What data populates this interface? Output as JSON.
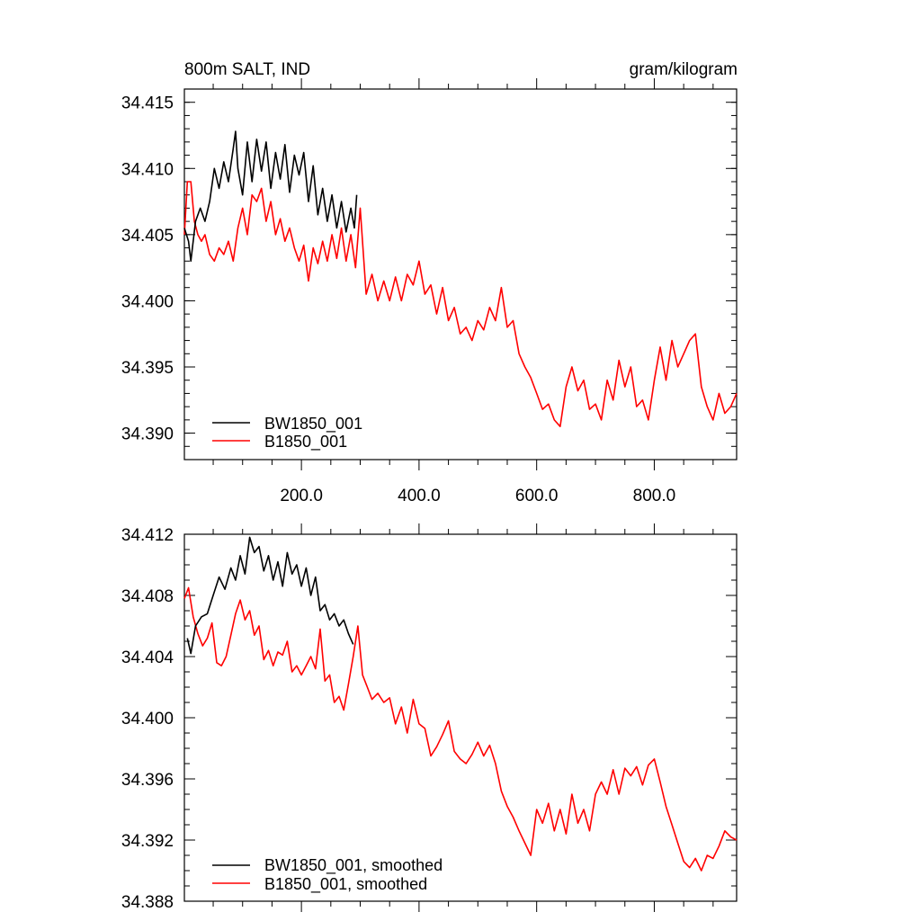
{
  "chart_data": [
    {
      "type": "line",
      "title": "800m SALT, IND",
      "units": "gram/kilogram",
      "xlabel": "",
      "ylabel": "",
      "xlim": [
        1,
        940
      ],
      "ylim": [
        34.388,
        34.416
      ],
      "x_ticks": [
        200,
        400,
        600,
        800
      ],
      "x_tick_labels": [
        "200.0",
        "400.0",
        "600.0",
        "800.0"
      ],
      "y_ticks": [
        34.39,
        34.395,
        34.4,
        34.405,
        34.41,
        34.415
      ],
      "y_tick_labels": [
        "34.390",
        "34.395",
        "34.400",
        "34.405",
        "34.410",
        "34.415"
      ],
      "grid": false,
      "legend_position": "bottom-left",
      "series": [
        {
          "name": "BW1850_001",
          "color": "#000000",
          "x": [
            1,
            8,
            12,
            20,
            28,
            36,
            44,
            52,
            60,
            68,
            76,
            84,
            88,
            92,
            100,
            108,
            116,
            124,
            132,
            140,
            148,
            156,
            164,
            172,
            180,
            188,
            196,
            204,
            212,
            220,
            228,
            236,
            244,
            252,
            260,
            268,
            276,
            284,
            290,
            294
          ],
          "values": [
            34.4055,
            34.4045,
            34.403,
            34.406,
            34.407,
            34.406,
            34.4075,
            34.41,
            34.4085,
            34.4105,
            34.409,
            34.4115,
            34.4128,
            34.41,
            34.408,
            34.412,
            34.409,
            34.4122,
            34.4098,
            34.412,
            34.4085,
            34.4112,
            34.4092,
            34.4118,
            34.4082,
            34.411,
            34.4095,
            34.4112,
            34.4075,
            34.4102,
            34.4065,
            34.4085,
            34.406,
            34.408,
            34.4055,
            34.4075,
            34.4052,
            34.407,
            34.4055,
            34.408
          ]
        },
        {
          "name": "B1850_001",
          "color": "#ff0000",
          "x": [
            1,
            6,
            12,
            18,
            24,
            30,
            36,
            44,
            52,
            60,
            68,
            76,
            84,
            92,
            100,
            108,
            116,
            124,
            132,
            140,
            148,
            156,
            164,
            172,
            180,
            188,
            196,
            204,
            212,
            220,
            228,
            236,
            244,
            252,
            260,
            268,
            276,
            284,
            292,
            300,
            310,
            320,
            330,
            340,
            350,
            360,
            370,
            380,
            390,
            400,
            410,
            420,
            430,
            440,
            450,
            460,
            470,
            480,
            490,
            500,
            510,
            520,
            530,
            540,
            550,
            560,
            570,
            580,
            590,
            600,
            610,
            620,
            630,
            640,
            650,
            660,
            670,
            680,
            690,
            700,
            710,
            720,
            730,
            740,
            750,
            760,
            770,
            780,
            790,
            800,
            810,
            820,
            830,
            840,
            850,
            860,
            870,
            880,
            890,
            900,
            910,
            920,
            930,
            940
          ],
          "values": [
            34.405,
            34.409,
            34.409,
            34.406,
            34.405,
            34.4045,
            34.405,
            34.4035,
            34.403,
            34.404,
            34.4035,
            34.4045,
            34.403,
            34.4055,
            34.407,
            34.405,
            34.408,
            34.4075,
            34.4085,
            34.406,
            34.4075,
            34.405,
            34.4062,
            34.4045,
            34.4055,
            34.404,
            34.403,
            34.4042,
            34.4015,
            34.404,
            34.4028,
            34.4045,
            34.403,
            34.405,
            34.4032,
            34.4055,
            34.403,
            34.405,
            34.4025,
            34.407,
            34.4005,
            34.402,
            34.4,
            34.4015,
            34.4,
            34.4018,
            34.4,
            34.402,
            34.4012,
            34.403,
            34.4005,
            34.4012,
            34.399,
            34.401,
            34.3985,
            34.3995,
            34.3975,
            34.398,
            34.397,
            34.3985,
            34.3978,
            34.3995,
            34.3985,
            34.401,
            34.398,
            34.3985,
            34.396,
            34.395,
            34.3942,
            34.393,
            34.3918,
            34.3922,
            34.391,
            34.3905,
            34.3935,
            34.395,
            34.3932,
            34.394,
            34.3918,
            34.3922,
            34.391,
            34.394,
            34.3925,
            34.3955,
            34.3935,
            34.395,
            34.392,
            34.3925,
            34.391,
            34.394,
            34.3965,
            34.394,
            34.397,
            34.395,
            34.396,
            34.397,
            34.3975,
            34.3935,
            34.392,
            34.391,
            34.393,
            34.3915,
            34.392,
            34.393
          ]
        }
      ]
    },
    {
      "type": "line",
      "title": "",
      "xlabel": "",
      "ylabel": "",
      "xlim": [
        1,
        940
      ],
      "ylim": [
        34.388,
        34.412
      ],
      "y_ticks": [
        34.388,
        34.392,
        34.396,
        34.4,
        34.404,
        34.408,
        34.412
      ],
      "y_tick_labels": [
        "34.388",
        "34.392",
        "34.396",
        "34.400",
        "34.404",
        "34.408",
        "34.412"
      ],
      "grid": false,
      "legend_position": "bottom-left",
      "series": [
        {
          "name": "BW1850_001, smoothed",
          "color": "#000000",
          "x": [
            6,
            12,
            20,
            30,
            40,
            50,
            60,
            70,
            80,
            88,
            96,
            104,
            112,
            120,
            128,
            136,
            144,
            152,
            160,
            168,
            176,
            184,
            192,
            200,
            208,
            216,
            224,
            232,
            240,
            248,
            256,
            264,
            272,
            280,
            288
          ],
          "values": [
            34.4052,
            34.4042,
            34.406,
            34.4066,
            34.4068,
            34.408,
            34.4092,
            34.4084,
            34.4098,
            34.409,
            34.4106,
            34.4094,
            34.4118,
            34.4108,
            34.4112,
            34.4096,
            34.4106,
            34.409,
            34.4102,
            34.4086,
            34.4108,
            34.4094,
            34.41,
            34.4086,
            34.4098,
            34.408,
            34.4092,
            34.407,
            34.4074,
            34.4064,
            34.4068,
            34.406,
            34.4064,
            34.4055,
            34.4048
          ]
        },
        {
          "name": "B1850_001, smoothed",
          "color": "#ff0000",
          "x": [
            1,
            8,
            16,
            24,
            32,
            40,
            48,
            56,
            64,
            72,
            80,
            88,
            96,
            104,
            112,
            120,
            128,
            136,
            144,
            152,
            160,
            168,
            176,
            184,
            192,
            200,
            208,
            216,
            224,
            232,
            240,
            248,
            256,
            264,
            272,
            280,
            288,
            296,
            304,
            312,
            320,
            330,
            340,
            350,
            360,
            370,
            380,
            390,
            400,
            410,
            420,
            430,
            440,
            450,
            460,
            470,
            480,
            490,
            500,
            510,
            520,
            530,
            540,
            550,
            560,
            570,
            580,
            590,
            600,
            610,
            620,
            630,
            640,
            650,
            660,
            670,
            680,
            690,
            700,
            710,
            720,
            730,
            740,
            750,
            760,
            770,
            780,
            790,
            800,
            810,
            820,
            830,
            840,
            850,
            860,
            870,
            880,
            890,
            900,
            910,
            920,
            930,
            940
          ],
          "values": [
            34.4078,
            34.4085,
            34.4066,
            34.4055,
            34.4047,
            34.4052,
            34.4062,
            34.4036,
            34.4034,
            34.404,
            34.4054,
            34.4068,
            34.4077,
            34.4064,
            34.407,
            34.4054,
            34.406,
            34.4038,
            34.4044,
            34.4034,
            34.4043,
            34.4041,
            34.405,
            34.403,
            34.4034,
            34.4028,
            34.4034,
            34.404,
            34.4032,
            34.4058,
            34.4024,
            34.4028,
            34.401,
            34.4014,
            34.4005,
            34.4022,
            34.404,
            34.406,
            34.4028,
            34.402,
            34.4012,
            34.4016,
            34.401,
            34.4013,
            34.3996,
            34.4007,
            34.399,
            34.4012,
            34.3996,
            34.3993,
            34.3975,
            34.3981,
            34.3989,
            34.3998,
            34.3978,
            34.3973,
            34.397,
            34.3976,
            34.3984,
            34.3975,
            34.3982,
            34.397,
            34.3952,
            34.3942,
            34.3935,
            34.3926,
            34.3918,
            34.391,
            34.394,
            34.3931,
            34.3944,
            34.3926,
            34.394,
            34.3924,
            34.395,
            34.3931,
            34.394,
            34.3926,
            34.395,
            34.3958,
            34.395,
            34.3966,
            34.395,
            34.3967,
            34.3962,
            34.3968,
            34.3956,
            34.3969,
            34.3973,
            34.3958,
            34.3942,
            34.393,
            34.3918,
            34.3906,
            34.3902,
            34.3908,
            34.39,
            34.391,
            34.3908,
            34.3916,
            34.3926,
            34.3922,
            34.392
          ]
        }
      ]
    }
  ]
}
